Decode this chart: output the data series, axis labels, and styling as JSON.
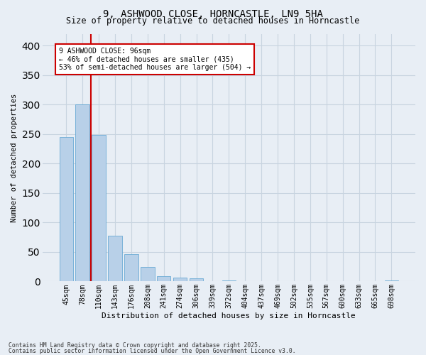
{
  "title_line1": "9, ASHWOOD CLOSE, HORNCASTLE, LN9 5HA",
  "title_line2": "Size of property relative to detached houses in Horncastle",
  "xlabel": "Distribution of detached houses by size in Horncastle",
  "ylabel": "Number of detached properties",
  "bar_labels": [
    "45sqm",
    "78sqm",
    "110sqm",
    "143sqm",
    "176sqm",
    "208sqm",
    "241sqm",
    "274sqm",
    "306sqm",
    "339sqm",
    "372sqm",
    "404sqm",
    "437sqm",
    "469sqm",
    "502sqm",
    "535sqm",
    "567sqm",
    "600sqm",
    "633sqm",
    "665sqm",
    "698sqm"
  ],
  "bar_values": [
    245,
    300,
    248,
    77,
    46,
    24,
    9,
    6,
    5,
    0,
    2,
    0,
    0,
    0,
    0,
    0,
    0,
    0,
    0,
    0,
    2
  ],
  "bar_color": "#b8d0e8",
  "bar_edge_color": "#6aaad4",
  "grid_color": "#c8d4e0",
  "background_color": "#e8eef5",
  "vline_x": 1.5,
  "vline_color": "#cc0000",
  "annotation_text": "9 ASHWOOD CLOSE: 96sqm\n← 46% of detached houses are smaller (435)\n53% of semi-detached houses are larger (504) →",
  "annotation_box_color": "#ffffff",
  "annotation_box_edgecolor": "#cc0000",
  "ylim": [
    0,
    420
  ],
  "yticks": [
    0,
    50,
    100,
    150,
    200,
    250,
    300,
    350,
    400
  ],
  "footer_line1": "Contains HM Land Registry data © Crown copyright and database right 2025.",
  "footer_line2": "Contains public sector information licensed under the Open Government Licence v3.0."
}
